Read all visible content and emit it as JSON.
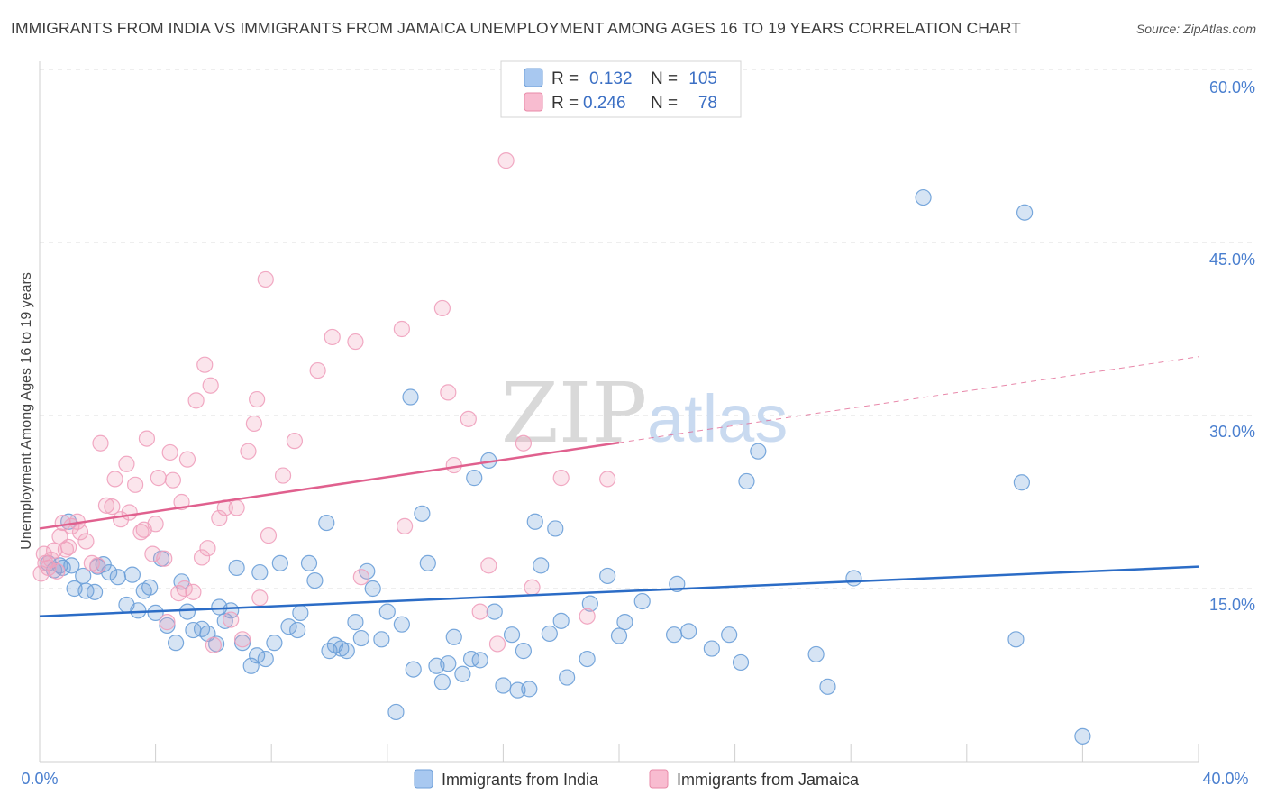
{
  "chart_data": {
    "type": "scatter",
    "title": "IMMIGRANTS FROM INDIA VS IMMIGRANTS FROM JAMAICA UNEMPLOYMENT AMONG AGES 16 TO 19 YEARS CORRELATION CHART",
    "source": "Source: ZipAtlas.com",
    "xlabel": "",
    "ylabel": "Unemployment Among Ages 16 to 19 years",
    "xlim": [
      0,
      40
    ],
    "ylim": [
      0,
      60
    ],
    "x_tick_labels": [
      "0.0%",
      "40.0%"
    ],
    "y_ticks": [
      15,
      30,
      45,
      60
    ],
    "y_tick_labels": [
      "15.0%",
      "30.0%",
      "45.0%",
      "60.0%"
    ],
    "grid": true,
    "watermark": {
      "zip": "ZIP",
      "atlas": "atlas"
    },
    "legend_top": [
      {
        "r_label": "R =",
        "r_value": "0.132",
        "n_label": "N =",
        "n_value": "105",
        "color": "#a8c8f0",
        "stroke": "#6f9fd8"
      },
      {
        "r_label": "R =",
        "r_value": "0.246",
        "n_label": "N =",
        "n_value": "78",
        "color": "#f8bcd0",
        "stroke": "#e88aa8"
      }
    ],
    "series": [
      {
        "name": "Immigrants from India",
        "color": "#6a9fd8",
        "line_color": "#2b6cc6",
        "trend": {
          "x0": 0,
          "y0": 12.6,
          "x1": 40,
          "y1": 16.9,
          "dashed_from": null
        },
        "points": [
          [
            0.3,
            17.2
          ],
          [
            0.5,
            16.6
          ],
          [
            0.7,
            17.0
          ],
          [
            0.8,
            16.8
          ],
          [
            1.0,
            20.8
          ],
          [
            1.1,
            17.0
          ],
          [
            1.2,
            15.0
          ],
          [
            1.5,
            16.1
          ],
          [
            1.6,
            14.8
          ],
          [
            1.9,
            14.7
          ],
          [
            2.0,
            16.9
          ],
          [
            2.2,
            17.1
          ],
          [
            2.4,
            16.4
          ],
          [
            2.7,
            16.0
          ],
          [
            3.0,
            13.6
          ],
          [
            3.2,
            16.2
          ],
          [
            3.4,
            13.1
          ],
          [
            3.6,
            14.8
          ],
          [
            3.8,
            15.1
          ],
          [
            4.0,
            12.9
          ],
          [
            4.2,
            17.6
          ],
          [
            4.4,
            11.8
          ],
          [
            4.7,
            10.3
          ],
          [
            4.9,
            15.6
          ],
          [
            5.1,
            13.0
          ],
          [
            5.3,
            11.4
          ],
          [
            5.6,
            11.5
          ],
          [
            5.8,
            11.1
          ],
          [
            6.1,
            10.2
          ],
          [
            6.2,
            13.4
          ],
          [
            6.4,
            12.2
          ],
          [
            6.6,
            13.1
          ],
          [
            6.8,
            16.8
          ],
          [
            7.0,
            10.3
          ],
          [
            7.3,
            8.3
          ],
          [
            7.5,
            9.2
          ],
          [
            7.6,
            16.4
          ],
          [
            7.8,
            8.9
          ],
          [
            8.1,
            10.3
          ],
          [
            8.3,
            17.2
          ],
          [
            8.6,
            11.7
          ],
          [
            8.9,
            11.4
          ],
          [
            9.0,
            12.9
          ],
          [
            9.3,
            17.2
          ],
          [
            9.5,
            15.7
          ],
          [
            9.9,
            20.7
          ],
          [
            10.0,
            9.6
          ],
          [
            10.2,
            10.1
          ],
          [
            10.4,
            9.8
          ],
          [
            10.6,
            9.6
          ],
          [
            10.9,
            12.1
          ],
          [
            11.1,
            10.7
          ],
          [
            11.3,
            16.5
          ],
          [
            11.5,
            15.0
          ],
          [
            11.8,
            10.6
          ],
          [
            12.0,
            13.0
          ],
          [
            12.3,
            4.3
          ],
          [
            12.5,
            11.9
          ],
          [
            12.8,
            31.6
          ],
          [
            12.9,
            8.0
          ],
          [
            13.2,
            21.5
          ],
          [
            13.4,
            17.2
          ],
          [
            13.7,
            8.3
          ],
          [
            13.9,
            6.9
          ],
          [
            14.1,
            8.5
          ],
          [
            14.3,
            10.8
          ],
          [
            14.6,
            7.6
          ],
          [
            14.9,
            8.9
          ],
          [
            15.0,
            24.6
          ],
          [
            15.2,
            8.8
          ],
          [
            15.5,
            26.1
          ],
          [
            15.7,
            13.0
          ],
          [
            16.0,
            6.6
          ],
          [
            16.3,
            11.0
          ],
          [
            16.5,
            6.2
          ],
          [
            16.7,
            9.6
          ],
          [
            16.9,
            6.3
          ],
          [
            17.1,
            20.8
          ],
          [
            17.3,
            17.0
          ],
          [
            17.6,
            11.1
          ],
          [
            17.8,
            20.2
          ],
          [
            18.0,
            12.2
          ],
          [
            18.2,
            7.3
          ],
          [
            18.9,
            8.9
          ],
          [
            19.0,
            13.7
          ],
          [
            19.6,
            16.1
          ],
          [
            20.0,
            10.9
          ],
          [
            20.2,
            12.1
          ],
          [
            20.8,
            13.9
          ],
          [
            21.9,
            11.0
          ],
          [
            22.0,
            15.4
          ],
          [
            22.4,
            11.3
          ],
          [
            23.2,
            9.8
          ],
          [
            23.8,
            11.0
          ],
          [
            24.2,
            8.6
          ],
          [
            24.4,
            24.3
          ],
          [
            24.8,
            26.9
          ],
          [
            26.8,
            9.3
          ],
          [
            27.2,
            6.5
          ],
          [
            28.1,
            15.9
          ],
          [
            30.5,
            48.9
          ],
          [
            33.7,
            10.6
          ],
          [
            33.9,
            24.2
          ],
          [
            34.0,
            47.6
          ],
          [
            36.0,
            2.2
          ]
        ]
      },
      {
        "name": "Immigrants from Jamaica",
        "color": "#f0a0bc",
        "line_color": "#e0608e",
        "trend": {
          "x0": 0,
          "y0": 20.2,
          "x1": 40,
          "y1": 35.1,
          "dashed_from": 20
        },
        "points": [
          [
            0.2,
            17.2
          ],
          [
            0.3,
            16.8
          ],
          [
            0.4,
            17.5
          ],
          [
            0.5,
            18.3
          ],
          [
            0.6,
            16.5
          ],
          [
            0.7,
            19.5
          ],
          [
            0.8,
            20.7
          ],
          [
            0.9,
            18.4
          ],
          [
            1.0,
            18.6
          ],
          [
            1.1,
            20.4
          ],
          [
            1.3,
            20.8
          ],
          [
            1.4,
            19.9
          ],
          [
            1.6,
            19.1
          ],
          [
            1.8,
            17.2
          ],
          [
            2.0,
            17.0
          ],
          [
            2.1,
            27.6
          ],
          [
            2.3,
            22.2
          ],
          [
            2.5,
            22.1
          ],
          [
            2.6,
            24.5
          ],
          [
            2.8,
            21.0
          ],
          [
            3.0,
            25.8
          ],
          [
            3.1,
            21.6
          ],
          [
            3.3,
            24.0
          ],
          [
            3.5,
            19.9
          ],
          [
            3.6,
            20.1
          ],
          [
            3.7,
            28.0
          ],
          [
            3.9,
            18.0
          ],
          [
            4.0,
            20.6
          ],
          [
            4.1,
            24.6
          ],
          [
            4.3,
            17.6
          ],
          [
            4.4,
            12.1
          ],
          [
            4.5,
            26.8
          ],
          [
            4.6,
            24.4
          ],
          [
            4.8,
            14.6
          ],
          [
            4.9,
            22.5
          ],
          [
            5.0,
            15.0
          ],
          [
            5.1,
            26.2
          ],
          [
            5.3,
            14.7
          ],
          [
            5.4,
            31.3
          ],
          [
            5.6,
            17.7
          ],
          [
            5.7,
            34.4
          ],
          [
            5.8,
            18.5
          ],
          [
            5.9,
            32.6
          ],
          [
            6.0,
            10.1
          ],
          [
            6.2,
            21.1
          ],
          [
            6.4,
            22.0
          ],
          [
            6.6,
            12.3
          ],
          [
            6.8,
            22.0
          ],
          [
            7.0,
            10.6
          ],
          [
            7.2,
            26.9
          ],
          [
            7.4,
            29.3
          ],
          [
            7.5,
            31.4
          ],
          [
            7.6,
            14.2
          ],
          [
            7.8,
            41.8
          ],
          [
            7.9,
            19.6
          ],
          [
            8.4,
            24.8
          ],
          [
            8.8,
            27.8
          ],
          [
            9.6,
            33.9
          ],
          [
            10.1,
            36.8
          ],
          [
            10.9,
            36.4
          ],
          [
            11.1,
            16.0
          ],
          [
            12.5,
            37.5
          ],
          [
            12.6,
            20.4
          ],
          [
            13.9,
            39.3
          ],
          [
            14.1,
            32.0
          ],
          [
            14.3,
            25.7
          ],
          [
            14.8,
            29.7
          ],
          [
            15.2,
            13.0
          ],
          [
            15.5,
            17.0
          ],
          [
            15.8,
            10.2
          ],
          [
            16.1,
            52.1
          ],
          [
            16.7,
            27.6
          ],
          [
            17.0,
            15.1
          ],
          [
            18.0,
            24.6
          ],
          [
            18.9,
            12.6
          ],
          [
            19.6,
            24.5
          ],
          [
            0.05,
            16.3
          ],
          [
            0.15,
            18.0
          ]
        ]
      }
    ],
    "legend_bottom": [
      "Immigrants from India",
      "Immigrants from Jamaica"
    ]
  }
}
